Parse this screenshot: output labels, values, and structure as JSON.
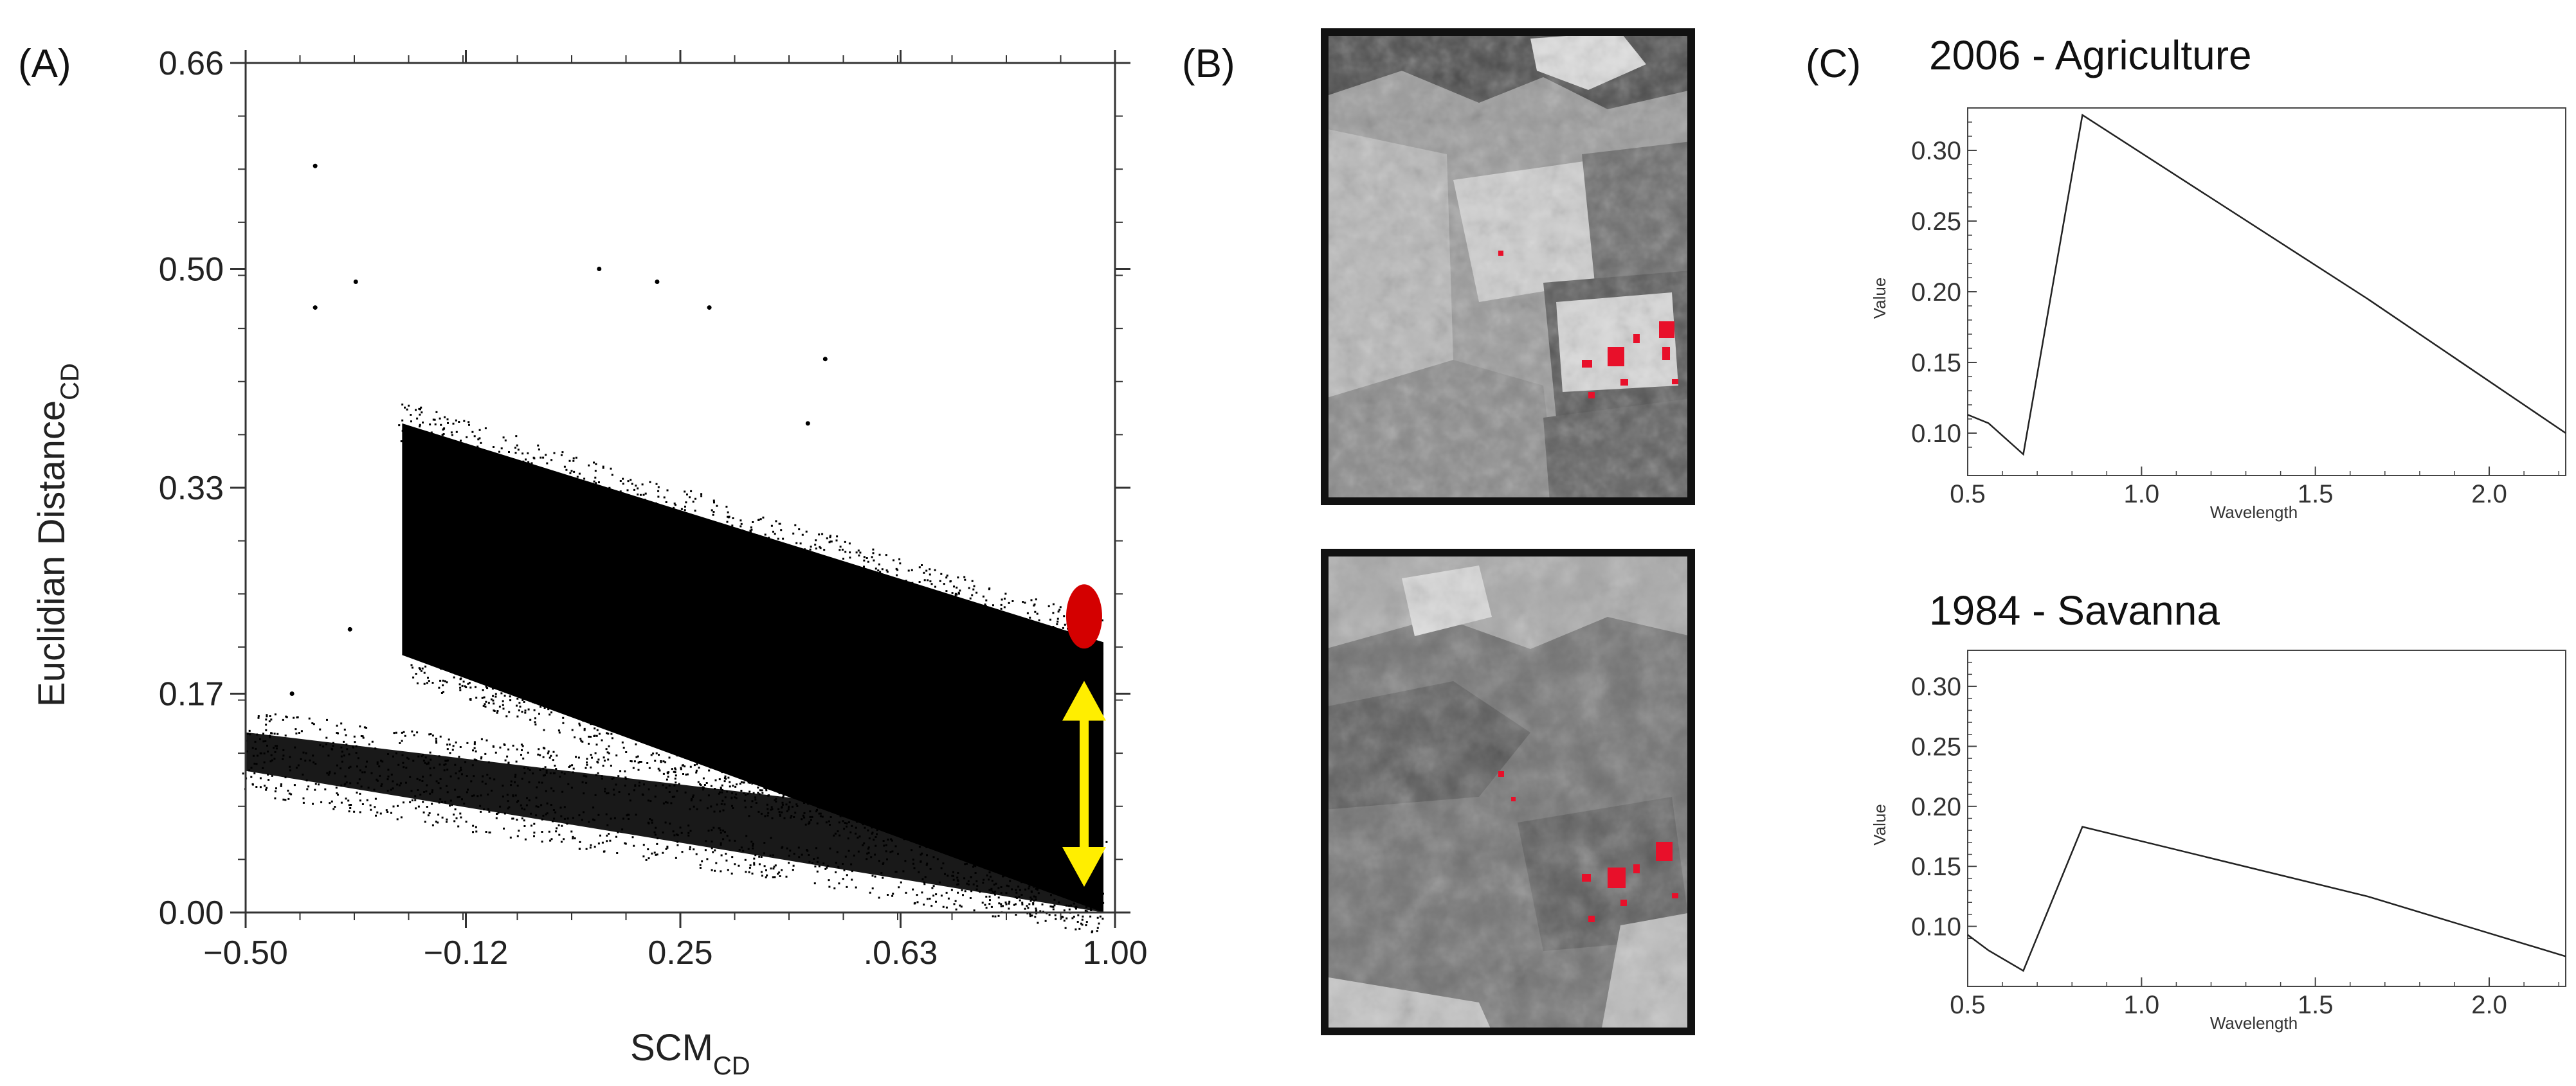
{
  "panels": {
    "a_label": "(A)",
    "b_label": "(B)",
    "c_label": "(C)"
  },
  "colors": {
    "points": "#000000",
    "marker_red": "#d40000",
    "arrow_yellow": "#ffee00",
    "red_pixels": "#e8102a"
  },
  "chart_data": [
    {
      "type": "scatter",
      "panel": "A",
      "xlabel_main": "SCM",
      "xlabel_sub": "CD",
      "ylabel_main": "Euclidian Distance",
      "ylabel_sub": "CD",
      "xlim": [
        -0.5,
        1.0
      ],
      "ylim": [
        0.0,
        0.66
      ],
      "x_ticks": [
        -0.5,
        -0.12,
        0.25,
        0.63,
        1.0
      ],
      "x_tick_labels": [
        "−0.50",
        "−0.12",
        "0.25",
        ".0.63",
        "1.00"
      ],
      "y_ticks": [
        0.0,
        0.17,
        0.33,
        0.5,
        0.66
      ],
      "y_tick_labels": [
        "0.00",
        "0.17",
        "0.33",
        "0.50",
        "0.66"
      ],
      "clusters": [
        {
          "x_from": -0.23,
          "x_to": 0.98,
          "upper_from": 0.38,
          "upper_to": 0.21,
          "lower_from": 0.2,
          "lower_to": 0.0
        },
        {
          "x_from": -0.5,
          "x_to": 0.98,
          "upper_from": 0.14,
          "upper_to": 0.06,
          "lower_from": 0.11,
          "lower_to": 0.0
        }
      ],
      "outliers": [
        {
          "x": -0.38,
          "y": 0.58
        },
        {
          "x": -0.31,
          "y": 0.49
        },
        {
          "x": -0.38,
          "y": 0.47
        },
        {
          "x": 0.21,
          "y": 0.49
        },
        {
          "x": 0.3,
          "y": 0.47
        },
        {
          "x": 0.5,
          "y": 0.43
        },
        {
          "x": 0.47,
          "y": 0.38
        },
        {
          "x": -0.32,
          "y": 0.22
        },
        {
          "x": -0.42,
          "y": 0.17
        },
        {
          "x": 0.11,
          "y": 0.5
        }
      ],
      "red_marker": {
        "x": 0.98,
        "y": 0.23
      },
      "yellow_arrow": {
        "x": 0.98,
        "y_from": 0.02,
        "y_to": 0.18
      }
    },
    {
      "type": "line",
      "panel": "C-top",
      "title": "2006 - Agriculture",
      "xlabel": "Wavelength",
      "ylabel": "Value",
      "xlim": [
        0.5,
        2.22
      ],
      "ylim": [
        0.07,
        0.33
      ],
      "x_ticks": [
        0.5,
        1.0,
        1.5,
        2.0
      ],
      "x_tick_labels": [
        "0.5",
        "1.0",
        "1.5",
        "2.0"
      ],
      "y_ticks": [
        0.1,
        0.15,
        0.2,
        0.25,
        0.3
      ],
      "y_tick_labels": [
        "0.10",
        "0.15",
        "0.20",
        "0.25",
        "0.30"
      ],
      "x": [
        0.48,
        0.56,
        0.66,
        0.83,
        1.65,
        2.22
      ],
      "y": [
        0.113,
        0.107,
        0.085,
        0.325,
        0.195,
        0.1
      ]
    },
    {
      "type": "line",
      "panel": "C-bottom",
      "title": "1984 - Savanna",
      "xlabel": "Wavelength",
      "ylabel": "Value",
      "xlim": [
        0.5,
        2.22
      ],
      "ylim": [
        0.05,
        0.33
      ],
      "x_ticks": [
        0.5,
        1.0,
        1.5,
        2.0
      ],
      "x_tick_labels": [
        "0.5",
        "1.0",
        "1.5",
        "2.0"
      ],
      "y_ticks": [
        0.1,
        0.15,
        0.2,
        0.25,
        0.3
      ],
      "y_tick_labels": [
        "0.10",
        "0.15",
        "0.20",
        "0.25",
        "0.30"
      ],
      "x": [
        0.48,
        0.56,
        0.66,
        0.83,
        1.65,
        2.22
      ],
      "y": [
        0.093,
        0.08,
        0.063,
        0.183,
        0.125,
        0.075
      ]
    }
  ]
}
